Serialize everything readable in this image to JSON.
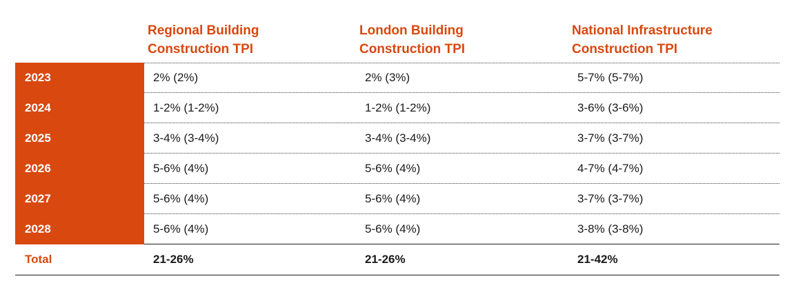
{
  "header": {
    "col1": "Regional Building\nConstruction TPI",
    "col2": "London Building\nConstruction TPI",
    "col3": "National Infrastructure\nConstruction TPI"
  },
  "rows": [
    {
      "year": "2023",
      "regional": "2% (2%)",
      "london": "2% (3%)",
      "national": "5-7% (5-7%)"
    },
    {
      "year": "2024",
      "regional": "1-2% (1-2%)",
      "london": "1-2% (1-2%)",
      "national": "3-6% (3-6%)"
    },
    {
      "year": "2025",
      "regional": "3-4% (3-4%)",
      "london": "3-4% (3-4%)",
      "national": "3-7% (3-7%)"
    },
    {
      "year": "2026",
      "regional": "5-6% (4%)",
      "london": "5-6% (4%)",
      "national": "4-7% (4-7%)"
    },
    {
      "year": "2027",
      "regional": "5-6% (4%)",
      "london": "5-6% (4%)",
      "national": "3-7% (3-7%)"
    },
    {
      "year": "2028",
      "regional": "5-6% (4%)",
      "london": "5-6% (4%)",
      "national": "3-8% (3-8%)"
    }
  ],
  "total": {
    "label": "Total",
    "regional": "21-26%",
    "london": "21-26%",
    "national": "21-42%"
  },
  "colors": {
    "accent": "#d9480f",
    "text": "#1a1a1a",
    "background": "#ffffff"
  }
}
